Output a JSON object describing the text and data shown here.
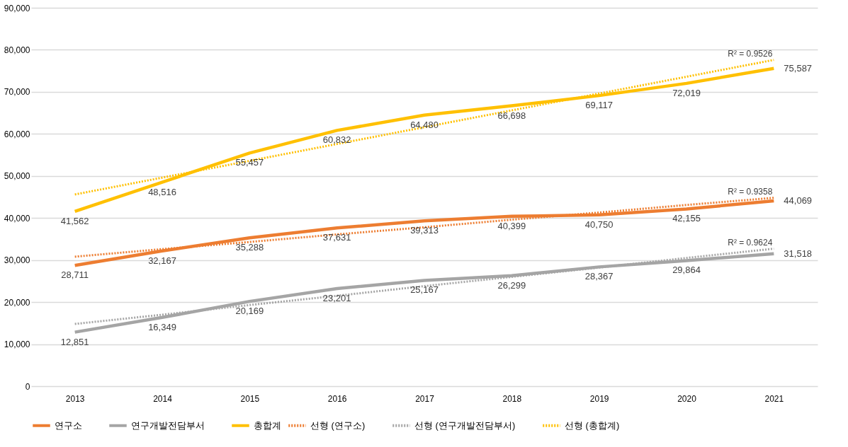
{
  "chart_data": {
    "type": "line",
    "categories": [
      "2013",
      "2014",
      "2015",
      "2016",
      "2017",
      "2018",
      "2019",
      "2020",
      "2021"
    ],
    "series": [
      {
        "name": "연구소",
        "color": "#ed7d31",
        "line_style": "solid",
        "values": [
          28711,
          32167,
          35288,
          37631,
          39313,
          40399,
          40750,
          42155,
          44069
        ],
        "value_labels": [
          "28,711",
          "32,167",
          "35,288",
          "37,631",
          "39,313",
          "40,399",
          "40,750",
          "42,155",
          "44,069"
        ]
      },
      {
        "name": "연구개발전담부서",
        "color": "#a5a5a5",
        "line_style": "solid",
        "values": [
          12851,
          16349,
          20169,
          23201,
          25167,
          26299,
          28367,
          29864,
          31518
        ],
        "value_labels": [
          "12,851",
          "16,349",
          "20,169",
          "23,201",
          "25,167",
          "26,299",
          "28,367",
          "29,864",
          "31,518"
        ]
      },
      {
        "name": "총합계",
        "color": "#ffc000",
        "line_style": "solid",
        "values": [
          41562,
          48516,
          55457,
          60832,
          64480,
          66698,
          69117,
          72019,
          75587
        ],
        "value_labels": [
          "41,562",
          "48,516",
          "55,457",
          "60,832",
          "64,480",
          "66,698",
          "69,117",
          "72,019",
          "75,587"
        ]
      },
      {
        "name": "선형 (연구소)",
        "color": "#ed7d31",
        "type": "line",
        "line_style": "dotted",
        "values": [
          30800,
          32600,
          34300,
          36100,
          37800,
          39600,
          41300,
          43100,
          44800
        ]
      },
      {
        "name": "선형 (연구개발전담부서)",
        "color": "#a5a5a5",
        "type": "line",
        "line_style": "dotted",
        "values": [
          14800,
          17000,
          19300,
          21500,
          23800,
          26000,
          28200,
          30500,
          32700
        ]
      },
      {
        "name": "선형 (총합계)",
        "color": "#ffc000",
        "type": "line",
        "line_style": "dotted",
        "values": [
          45600,
          49600,
          53600,
          57600,
          61600,
          65600,
          69600,
          73600,
          77600
        ]
      }
    ],
    "ylim": [
      0,
      90000
    ],
    "yticks": [
      0,
      {
        "value": 10000,
        "label": "10,000"
      },
      {
        "value": 20000,
        "label": "20,000"
      },
      {
        "value": 30000,
        "label": "30,000"
      },
      {
        "value": 40000,
        "label": "40,000"
      },
      {
        "value": 50000,
        "label": "50,000"
      },
      {
        "value": 60000,
        "label": "60,000"
      },
      {
        "value": 70000,
        "label": "70,000"
      },
      {
        "value": 80000,
        "label": "80,000"
      },
      {
        "value": 90000,
        "label": "90,000"
      }
    ],
    "grid": "y",
    "legend": "bottom",
    "marker": "none",
    "annotations": [
      {
        "text": "R² = 0.9526",
        "x": "2021",
        "y": 77600
      },
      {
        "text": "R² = 0.9358",
        "x": "2021",
        "y": 44800
      },
      {
        "text": "R² = 0.9624",
        "x": "2021",
        "y": 32700
      }
    ]
  }
}
